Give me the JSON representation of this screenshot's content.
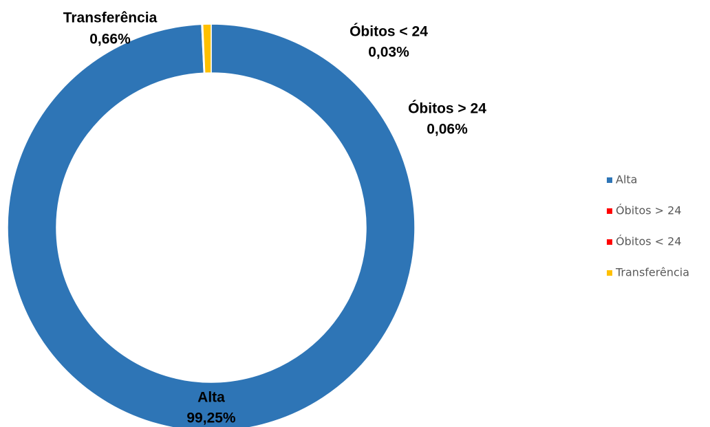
{
  "chart_data": {
    "type": "donut",
    "categories": [
      "Alta",
      "Óbitos > 24",
      "Óbitos < 24",
      "Transferência"
    ],
    "values": [
      99.25,
      0.06,
      0.03,
      0.66
    ],
    "value_labels": [
      "99,25%",
      "0,06%",
      "0,03%",
      "0,66%"
    ],
    "colors": [
      "#2e75b6",
      "#ff0000",
      "#ff0000",
      "#ffc000"
    ],
    "legend": "right"
  }
}
